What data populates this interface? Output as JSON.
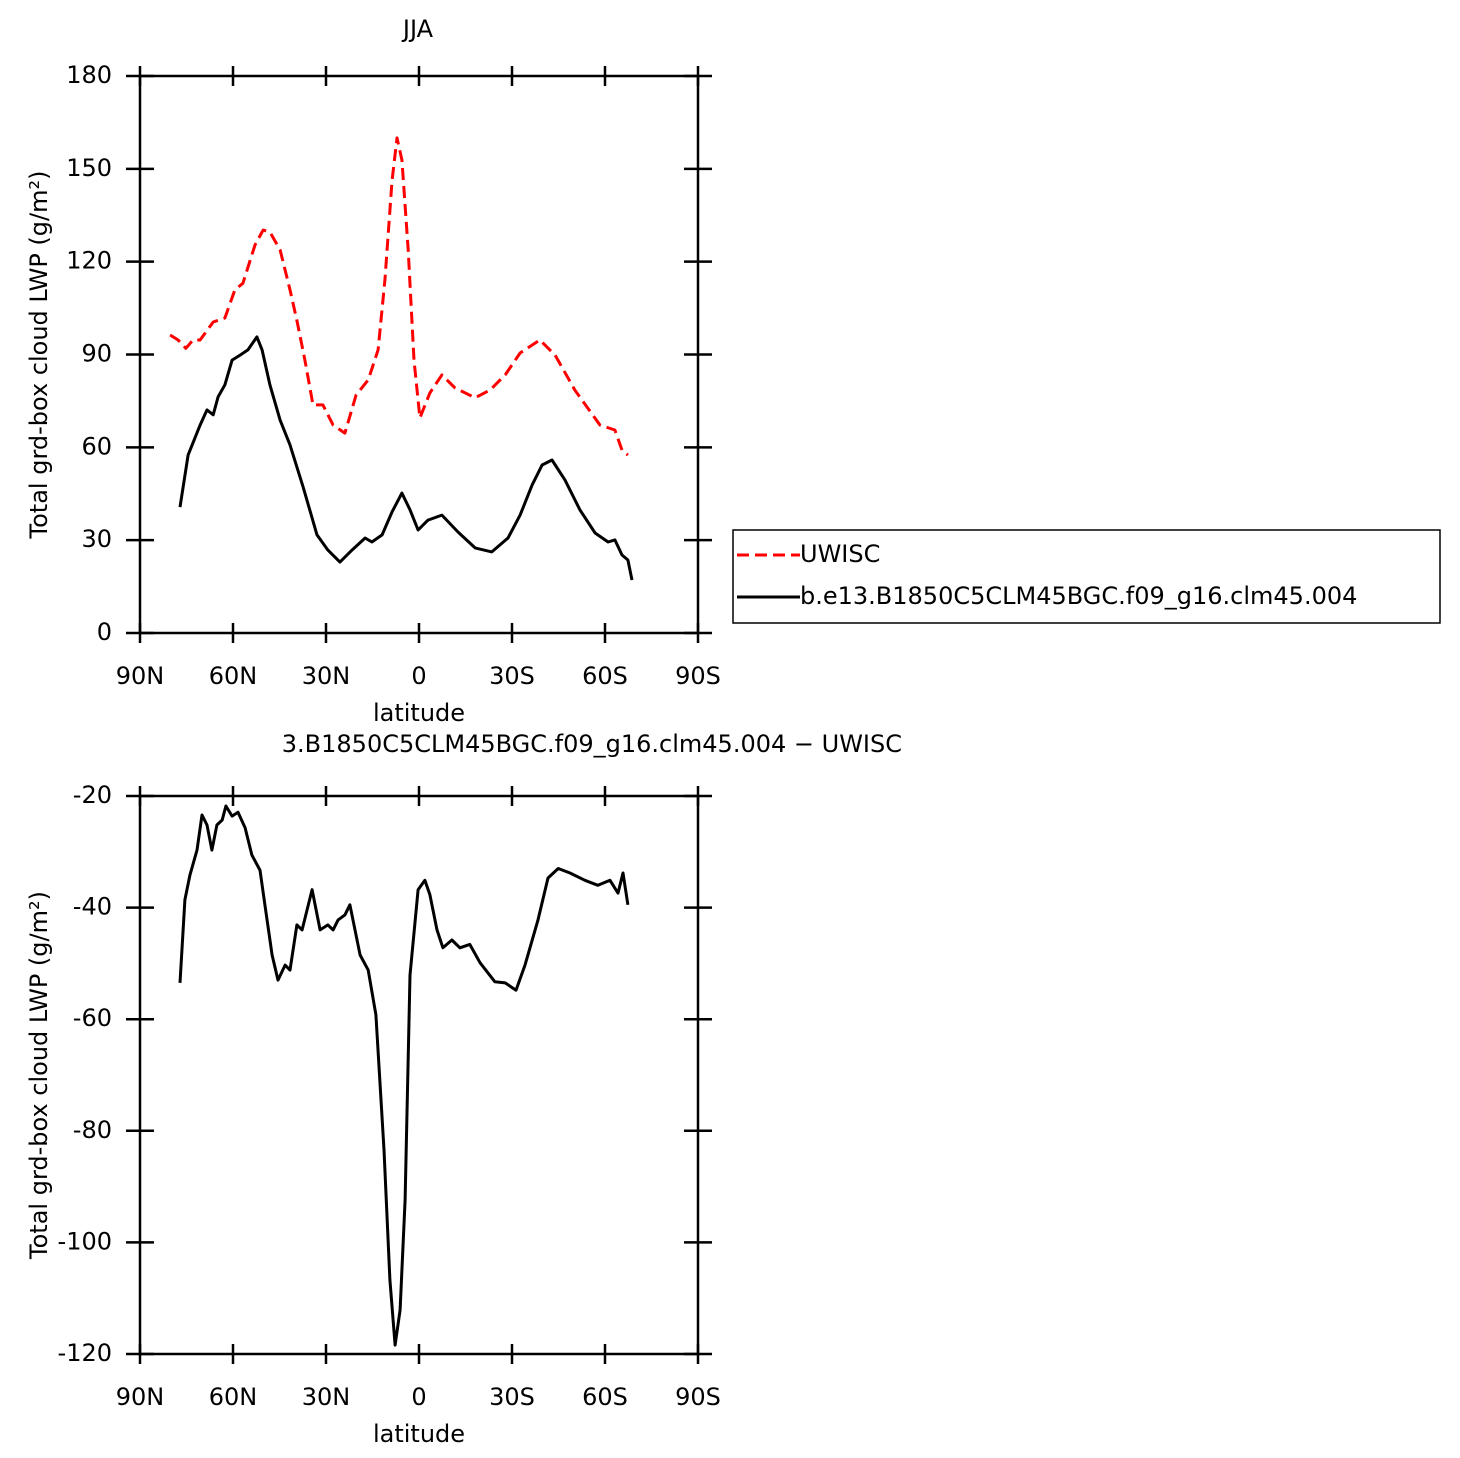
{
  "chart_data": [
    {
      "type": "line",
      "title": "JJA",
      "xlabel": "latitude",
      "ylabel": "Total grd-box cloud LWP (g/m²)",
      "xlim": [
        90,
        -90
      ],
      "ylim": [
        0,
        180
      ],
      "xticks": [
        {
          "value": 90,
          "label": "90N"
        },
        {
          "value": 60,
          "label": "60N"
        },
        {
          "value": 30,
          "label": "30N"
        },
        0,
        {
          "value": -30,
          "label": "30S"
        },
        {
          "value": -60,
          "label": "60S"
        },
        {
          "value": -90,
          "label": "90S"
        }
      ],
      "yticks": [
        0,
        30,
        60,
        90,
        120,
        150,
        180
      ],
      "legend": "right",
      "series": [
        {
          "name": "UWISC",
          "color": "#ff0000",
          "dashed": true,
          "x": [
            80.3,
            77.7,
            75.2,
            72.9,
            70.6,
            66.4,
            62.6,
            59.4,
            56.8,
            52.9,
            50.3,
            48.1,
            44.8,
            41.6,
            39.4,
            36.8,
            34.2,
            31,
            27.7,
            23.9,
            20.3,
            16.4,
            13.2,
            11,
            8.7,
            7.1,
            5.5,
            3.5,
            1.6,
            -0.3,
            -3.5,
            -7.4,
            -11.6,
            -18.1,
            -22.9,
            -27.8,
            -32.6,
            -39,
            -43.9,
            -50.3,
            -58.4,
            -63.2,
            -65.5,
            -67.4
          ],
          "values": [
            96.3,
            94.7,
            92,
            94.7,
            94.7,
            100.5,
            101.8,
            110.9,
            113,
            125.4,
            130.2,
            129.6,
            123.8,
            110.9,
            101,
            88.2,
            73.7,
            73.7,
            67.2,
            64.6,
            76.9,
            81.8,
            91.5,
            114,
            146,
            160,
            152.9,
            123.8,
            88.2,
            69.5,
            77.6,
            83.4,
            79.2,
            76,
            78.5,
            83.4,
            90.5,
            94.7,
            89.8,
            78.5,
            67.2,
            65.6,
            59.1,
            57.5
          ]
        },
        {
          "name": "b.e13.B1850C5CLM45BGC.f09_g16.clm45.004",
          "color": "#000000",
          "dashed": false,
          "x": [
            77.1,
            74.5,
            70.6,
            68.4,
            66.4,
            64.8,
            62.6,
            60.3,
            57.7,
            55.2,
            52.3,
            50.6,
            48.1,
            44.8,
            41.6,
            37.4,
            32.9,
            29.4,
            25.5,
            21.6,
            17.4,
            15.2,
            11.9,
            8.7,
            5.5,
            2.9,
            0.3,
            -2.9,
            -7.4,
            -12.6,
            -18.1,
            -23.5,
            -28.7,
            -32.6,
            -36.5,
            -39.7,
            -42.9,
            -47.1,
            -51.9,
            -56.8,
            -61,
            -63.2,
            -65.5,
            -67.4,
            -68.7
          ],
          "values": [
            40.7,
            57.5,
            67.2,
            72.1,
            70.5,
            76.3,
            80.2,
            88.2,
            89.8,
            91.5,
            95.7,
            91.5,
            80.2,
            68.8,
            60.8,
            47.2,
            31.7,
            26.8,
            22.9,
            26.8,
            30.7,
            29.4,
            31.7,
            39.1,
            45.2,
            39.8,
            33.3,
            36.5,
            38.1,
            32.6,
            27.5,
            26.2,
            30.7,
            38.1,
            47.8,
            54.3,
            55.9,
            49.4,
            39.8,
            32.3,
            29.4,
            30.1,
            25.2,
            23.6,
            17.1
          ]
        }
      ]
    },
    {
      "type": "line",
      "title": "3.B1850C5CLM45BGC.f09_g16.clm45.004 − UWISC",
      "xlabel": "latitude",
      "ylabel": "Total grd-box cloud LWP (g/m²)",
      "xlim": [
        90,
        -90
      ],
      "ylim": [
        -120,
        -20
      ],
      "xticks": [
        {
          "value": 90,
          "label": "90N"
        },
        {
          "value": 60,
          "label": "60N"
        },
        {
          "value": 30,
          "label": "30N"
        },
        0,
        {
          "value": -30,
          "label": "30S"
        },
        {
          "value": -60,
          "label": "60S"
        },
        {
          "value": -90,
          "label": "90S"
        }
      ],
      "yticks": [
        -120,
        -100,
        -80,
        -60,
        -40,
        -20
      ],
      "series": [
        {
          "color": "#000000",
          "dashed": false,
          "x": [
            77.1,
            75.5,
            73.9,
            71.6,
            70,
            68.4,
            66.8,
            65.2,
            63.5,
            62.3,
            60.3,
            58.4,
            56.1,
            53.9,
            51.3,
            49.7,
            47.4,
            45.5,
            43.2,
            41.6,
            39.4,
            37.7,
            34.5,
            31.9,
            29.4,
            27.7,
            26.1,
            23.9,
            22.3,
            19,
            16.4,
            13.9,
            11.3,
            9.4,
            7.7,
            6.1,
            4.5,
            2.9,
            0.3,
            -1.9,
            -3.5,
            -5.8,
            -7.7,
            -10.6,
            -13.2,
            -16.4,
            -19.7,
            -24.5,
            -27.8,
            -31.3,
            -34.2,
            -38.4,
            -41.6,
            -44.9,
            -48.7,
            -53.5,
            -57.7,
            -61.6,
            -64.2,
            -65.8,
            -67.4
          ],
          "values": [
            -53.5,
            -38.6,
            -34.2,
            -29.7,
            -23.4,
            -25.2,
            -29.7,
            -25.2,
            -24.3,
            -21.8,
            -23.6,
            -22.9,
            -25.7,
            -30.6,
            -33.3,
            -39.5,
            -48.5,
            -53,
            -50.3,
            -51.2,
            -43.1,
            -44,
            -36.8,
            -44,
            -43.1,
            -44,
            -42.2,
            -41.3,
            -39.5,
            -48.5,
            -51.2,
            -59.2,
            -83.4,
            -106.7,
            -118.4,
            -112.1,
            -92.4,
            -52.1,
            -36.8,
            -35.1,
            -37.7,
            -44,
            -47.2,
            -45.8,
            -47.2,
            -46.6,
            -49.9,
            -53.3,
            -53.5,
            -54.8,
            -50.3,
            -42.2,
            -34.7,
            -33,
            -33.8,
            -35.1,
            -36,
            -35.1,
            -37.4,
            -33.8,
            -39.5
          ]
        }
      ]
    }
  ]
}
